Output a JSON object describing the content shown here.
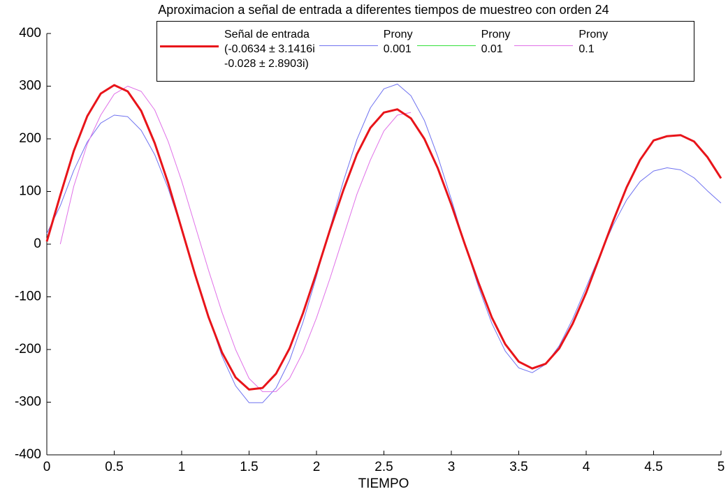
{
  "chart_data": {
    "type": "line",
    "title": "Aproximacion a señal de entrada a diferentes tiempos de muestreo con orden 24",
    "x_label": "TIEMPO",
    "x": [
      0,
      0.1,
      0.2,
      0.3,
      0.4,
      0.5,
      0.6,
      0.7,
      0.8,
      0.9,
      1,
      1.1,
      1.2,
      1.3,
      1.4,
      1.5,
      1.6,
      1.7,
      1.8,
      1.9,
      2,
      2.1,
      2.2,
      2.3,
      2.4,
      2.5,
      2.6,
      2.7,
      2.8,
      2.9,
      3,
      3.1,
      3.2,
      3.3,
      3.4,
      3.5,
      3.6,
      3.7,
      3.8,
      3.9,
      4,
      4.1,
      4.2,
      4.3,
      4.4,
      4.5,
      4.6,
      4.7,
      4.8,
      4.9,
      5
    ],
    "series": [
      {
        "name": "Señal de entrada\n(-0.0634 ± 3.1416i\n-0.028 ± 2.8903i)",
        "color": "#e8141a",
        "width": 3,
        "values": [
          5,
          93,
          177,
          243,
          286,
          302,
          290,
          253,
          192,
          116,
          29,
          -58,
          -139,
          -206,
          -253,
          -276,
          -273,
          -246,
          -198,
          -131,
          -54,
          27,
          103,
          171,
          221,
          250,
          256,
          239,
          200,
          144,
          75,
          0,
          -72,
          -139,
          -190,
          -223,
          -236,
          -227,
          -198,
          -151,
          -92,
          -24,
          44,
          108,
          160,
          197,
          205,
          207,
          195,
          165,
          125
        ]
      },
      {
        "name": "Prony\n0.001",
        "color": "#6f72f0",
        "width": 1,
        "values": [
          20,
          73,
          140,
          194,
          230,
          245,
          242,
          216,
          170,
          106,
          28,
          -56,
          -139,
          -213,
          -269,
          -301,
          -301,
          -273,
          -221,
          -148,
          -61,
          31,
          120,
          199,
          259,
          295,
          304,
          282,
          235,
          166,
          85,
          0,
          -80,
          -150,
          -203,
          -235,
          -244,
          -228,
          -193,
          -142,
          -82,
          -21,
          36,
          84,
          119,
          139,
          145,
          141,
          126,
          101,
          78
        ]
      },
      {
        "name": "Prony\n0.01",
        "color": "#33e03a",
        "width": 1,
        "values": [
          5,
          93,
          177,
          243,
          286,
          302,
          290,
          253,
          192,
          116,
          29,
          -58,
          -139,
          -206,
          -253,
          -276,
          -273,
          -246,
          -198,
          -131,
          -54,
          27,
          103,
          171,
          221,
          250,
          256,
          239,
          200,
          144,
          75,
          0,
          -72,
          -139,
          -190,
          -223,
          -236,
          -227,
          -198,
          -151,
          -92,
          -24,
          44,
          108,
          160,
          197,
          205,
          207,
          195,
          165,
          125
        ]
      },
      {
        "name": "Prony\n0.1",
        "color": "#e070e8",
        "width": 1,
        "x": [
          0.1,
          0.2,
          0.3,
          0.4,
          0.5,
          0.6,
          0.7,
          0.8,
          0.9,
          1,
          1.1,
          1.2,
          1.3,
          1.4,
          1.5,
          1.6,
          1.7,
          1.8,
          1.9,
          2,
          2.1,
          2.2,
          2.3,
          2.4,
          2.5,
          2.6,
          2.7
        ],
        "values": [
          0,
          110,
          190,
          245,
          285,
          300,
          290,
          255,
          195,
          120,
          35,
          -50,
          -130,
          -200,
          -255,
          -280,
          -280,
          -255,
          -205,
          -140,
          -65,
          15,
          95,
          160,
          215,
          245,
          250
        ]
      }
    ],
    "xlim": [
      0,
      5
    ],
    "xticks": [
      0,
      0.5,
      1,
      1.5,
      2,
      2.5,
      3,
      3.5,
      4,
      4.5,
      5
    ],
    "ylim": [
      -400,
      400
    ],
    "yticks": [
      -400,
      -300,
      -200,
      -100,
      0,
      100,
      200,
      300,
      400
    ],
    "grid": false
  }
}
